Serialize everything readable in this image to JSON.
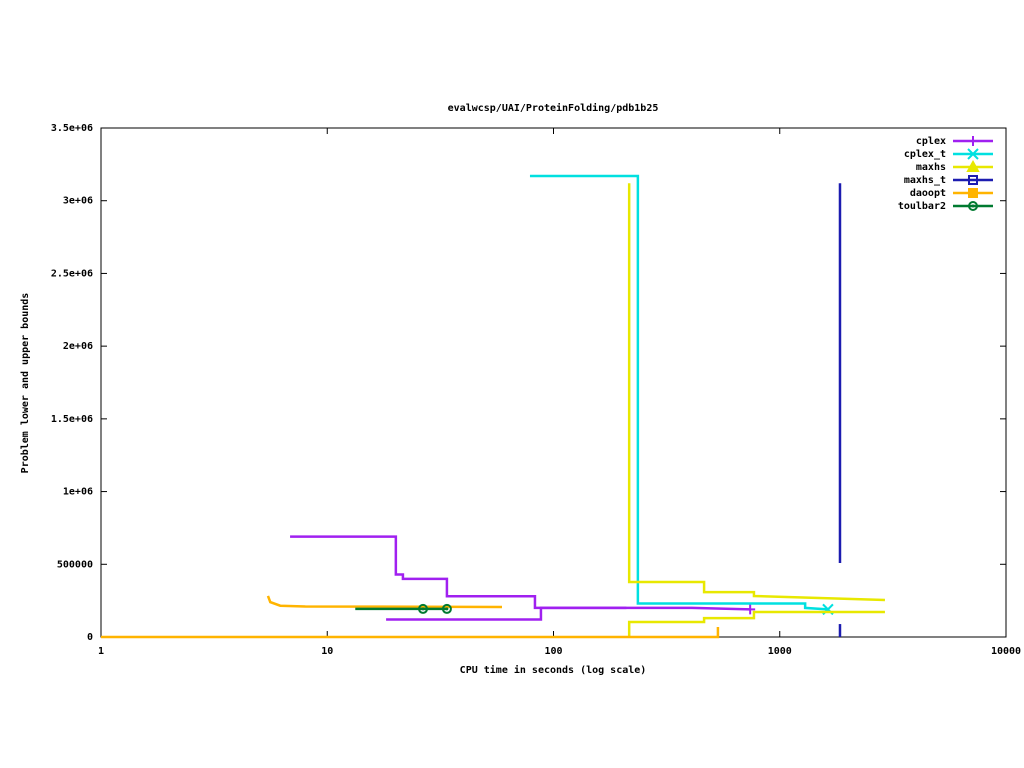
{
  "chart_data": {
    "type": "line",
    "title": "evalwcsp/UAI/ProteinFolding/pdb1b25",
    "x_label": "CPU time in seconds (log scale)",
    "y_label": "Problem lower and upper bounds",
    "x_log": true,
    "xlim": [
      1,
      10000
    ],
    "xticks": [
      1,
      10,
      100,
      1000,
      10000
    ],
    "ylim": [
      0,
      3500000
    ],
    "yticks": [
      0,
      500000,
      {
        "value": 1000000,
        "label": "1e+06"
      },
      {
        "value": 1500000,
        "label": "1.5e+06"
      },
      {
        "value": 2000000,
        "label": "2e+06"
      },
      {
        "value": 2500000,
        "label": "2.5e+06"
      },
      {
        "value": 3000000,
        "label": "3e+06"
      },
      {
        "value": 3500000,
        "label": "3.5e+06"
      }
    ],
    "legend": "top-right",
    "series": [
      {
        "name": "cplex",
        "color": "#a020f0",
        "marker": "plus",
        "markers_on_line": true,
        "x": [
          18.2,
          88,
          88,
          210,
          null,
          6.85,
          20.1,
          20.1,
          21.6,
          21.6,
          33.8,
          33.8,
          82.8,
          82.8,
          409,
          740
        ],
        "values": [
          120000,
          120000,
          200000,
          200000,
          null,
          690000,
          690000,
          430000,
          430000,
          400000,
          400000,
          280000,
          280000,
          200000,
          200000,
          190000
        ]
      },
      {
        "name": "cplex_t",
        "color": "#00e0e0",
        "marker": "cross",
        "markers_on_line": true,
        "x": [
          78.7,
          236,
          236,
          1295,
          1295,
          1633
        ],
        "values": [
          3170000,
          3170000,
          230000,
          230000,
          200000,
          190000
        ]
      },
      {
        "name": "maxhs",
        "color": "#e8e800",
        "marker": "triangle",
        "markers_on_line": false,
        "x": [
          216,
          216,
          463,
          463,
          769,
          769,
          2917,
          null,
          216,
          216,
          463,
          463,
          769,
          769,
          2917
        ],
        "values": [
          3120000,
          378000,
          378000,
          309000,
          309000,
          282000,
          254000,
          null,
          0,
          103000,
          103000,
          130000,
          130000,
          172000,
          172000
        ]
      },
      {
        "name": "maxhs_t",
        "color": "#1c1cb0",
        "marker": "square",
        "markers_on_line": false,
        "x": [
          1846,
          1846,
          null,
          1846,
          1846
        ],
        "values": [
          3120000,
          509000,
          null,
          89000,
          0
        ]
      },
      {
        "name": "daoopt",
        "color": "#ffb400",
        "marker": "filled-square",
        "markers_on_line": false,
        "x": [
          5.47,
          5.6,
          6.2,
          8,
          59.2,
          null,
          1,
          533,
          533
        ],
        "values": [
          282000,
          240000,
          215000,
          210000,
          206000,
          null,
          0,
          0,
          69000
        ]
      },
      {
        "name": "toulbar2",
        "color": "#007a30",
        "marker": "circle",
        "markers_on_line": true,
        "x": [
          13.3,
          26.5,
          33.8
        ],
        "values": [
          193000,
          193000,
          193000
        ]
      }
    ]
  }
}
